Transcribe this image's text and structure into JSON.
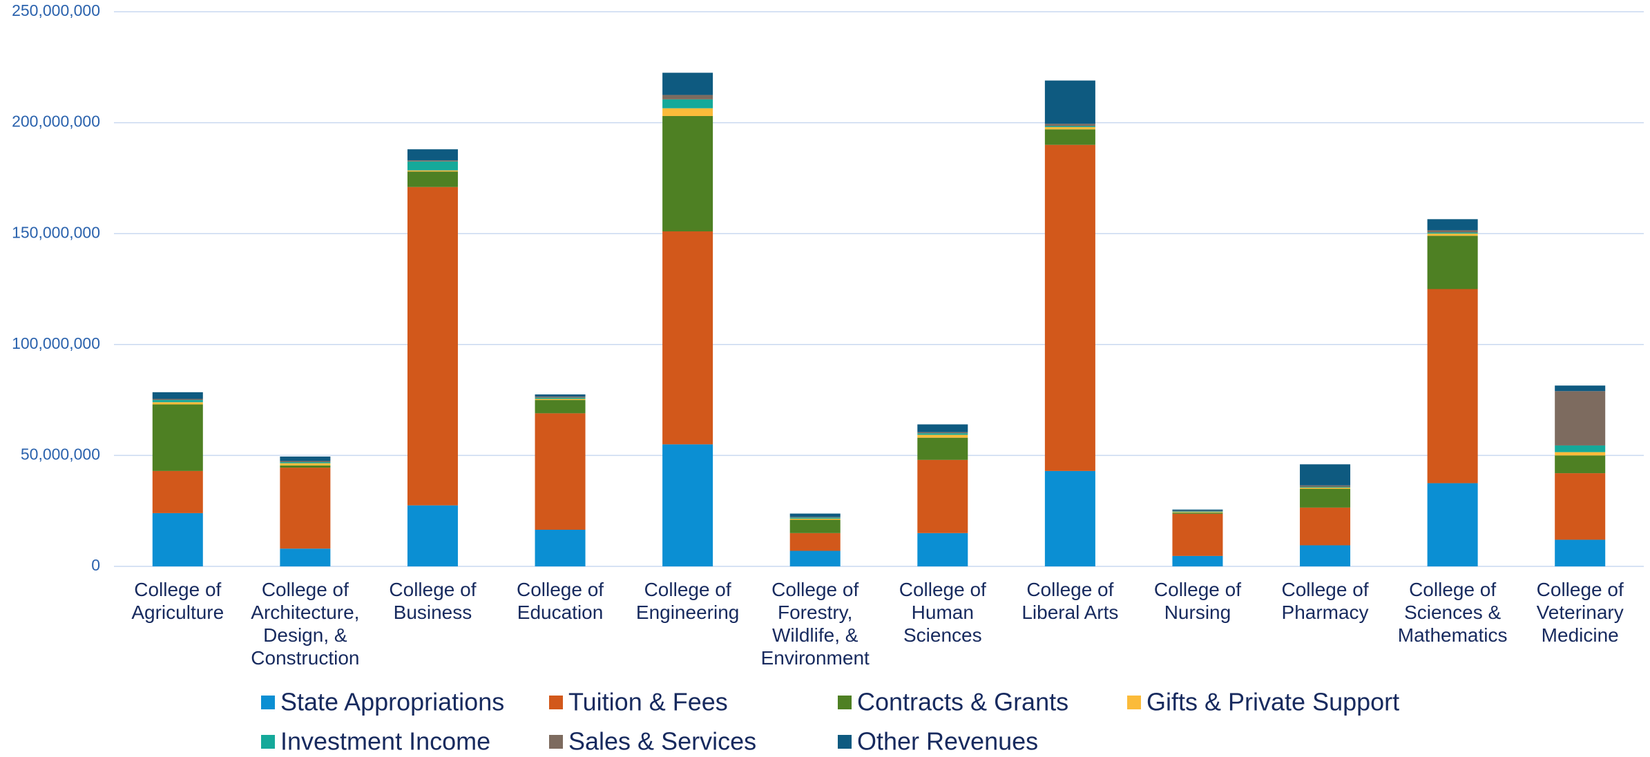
{
  "chart_data": {
    "type": "stacked_bar",
    "categories": [
      "College of\nAgriculture",
      "College of\nArchitecture,\nDesign, &\nConstruction",
      "College of\nBusiness",
      "College of\nEducation",
      "College of\nEngineering",
      "College of\nForestry,\nWildlife, &\nEnvironment",
      "College of\nHuman\nSciences",
      "College of\nLiberal Arts",
      "College of\nNursing",
      "College of\nPharmacy",
      "College of\nSciences &\nMathematics",
      "College of\nVeterinary\nMedicine"
    ],
    "series": [
      {
        "name": "State Appropriations",
        "color": "#0b8fd3",
        "values": [
          24000000,
          8000000,
          27500000,
          16500000,
          55000000,
          7000000,
          15000000,
          43000000,
          4700000,
          9500000,
          37500000,
          12000000
        ]
      },
      {
        "name": "Tuition & Fees",
        "color": "#d2581b",
        "values": [
          19000000,
          36500000,
          143500000,
          52500000,
          96000000,
          8000000,
          33000000,
          147000000,
          19000000,
          17000000,
          87500000,
          30000000
        ]
      },
      {
        "name": "Contracts & Grants",
        "color": "#4e8023",
        "values": [
          30000000,
          1000000,
          7000000,
          6000000,
          52000000,
          6000000,
          10000000,
          7000000,
          500000,
          8500000,
          24000000,
          8000000
        ]
      },
      {
        "name": "Gifts & Private Support",
        "color": "#fbbb3a",
        "values": [
          1000000,
          1000000,
          500000,
          500000,
          3500000,
          500000,
          1300000,
          1000000,
          300000,
          500000,
          1000000,
          1500000
        ]
      },
      {
        "name": "Investment Income",
        "color": "#15a99a",
        "values": [
          1000000,
          500000,
          4000000,
          500000,
          4000000,
          500000,
          700000,
          500000,
          300000,
          300000,
          500000,
          3000000
        ]
      },
      {
        "name": "Sales & Services",
        "color": "#7d6b5f",
        "values": [
          500000,
          500000,
          500000,
          500000,
          2000000,
          300000,
          500000,
          1000000,
          300000,
          700000,
          1000000,
          24500000
        ]
      },
      {
        "name": "Other Revenues",
        "color": "#0e5a80",
        "values": [
          3000000,
          2000000,
          5000000,
          1000000,
          10000000,
          1500000,
          3500000,
          19500000,
          500000,
          9500000,
          5000000,
          2500000
        ]
      }
    ],
    "ylim": [
      0,
      250000000
    ],
    "yticks": [
      0,
      {
        "value": 50000000,
        "label": "50,000,000"
      },
      {
        "value": 100000000,
        "label": "100,000,000"
      },
      {
        "value": 150000000,
        "label": "150,000,000"
      },
      {
        "value": 200000000,
        "label": "200,000,000"
      },
      {
        "value": 250000000,
        "label": "250,000,000"
      }
    ],
    "grid": true,
    "legend": "bottom"
  }
}
